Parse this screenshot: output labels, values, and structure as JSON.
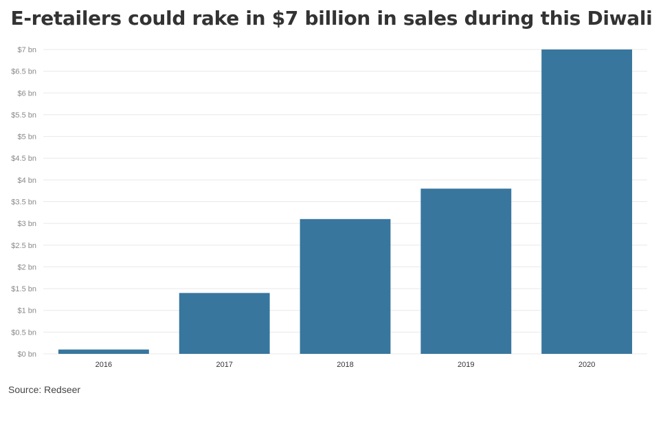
{
  "chart_data": {
    "type": "bar",
    "title": "E-retailers could rake in $7 billion in sales during this Diwali",
    "categories": [
      "2016",
      "2017",
      "2018",
      "2019",
      "2020"
    ],
    "values": [
      0.1,
      1.4,
      3.1,
      3.8,
      7.0
    ],
    "ylim": [
      0,
      7
    ],
    "yticks": [
      0,
      0.5,
      1,
      1.5,
      2,
      2.5,
      3,
      3.5,
      4,
      4.5,
      5,
      5.5,
      6,
      6.5,
      7
    ],
    "ytick_labels": [
      "$0 bn",
      "$0.5 bn",
      "$1 bn",
      "$1.5 bn",
      "$2 bn",
      "$2.5 bn",
      "$3 bn",
      "$3.5 bn",
      "$4 bn",
      "$4.5 bn",
      "$5 bn",
      "$5.5 bn",
      "$6 bn",
      "$6.5 bn",
      "$7 bn"
    ],
    "xlabel": "",
    "ylabel": "",
    "grid": true,
    "bar_color": "#38769e",
    "source": "Source: Redseer"
  }
}
